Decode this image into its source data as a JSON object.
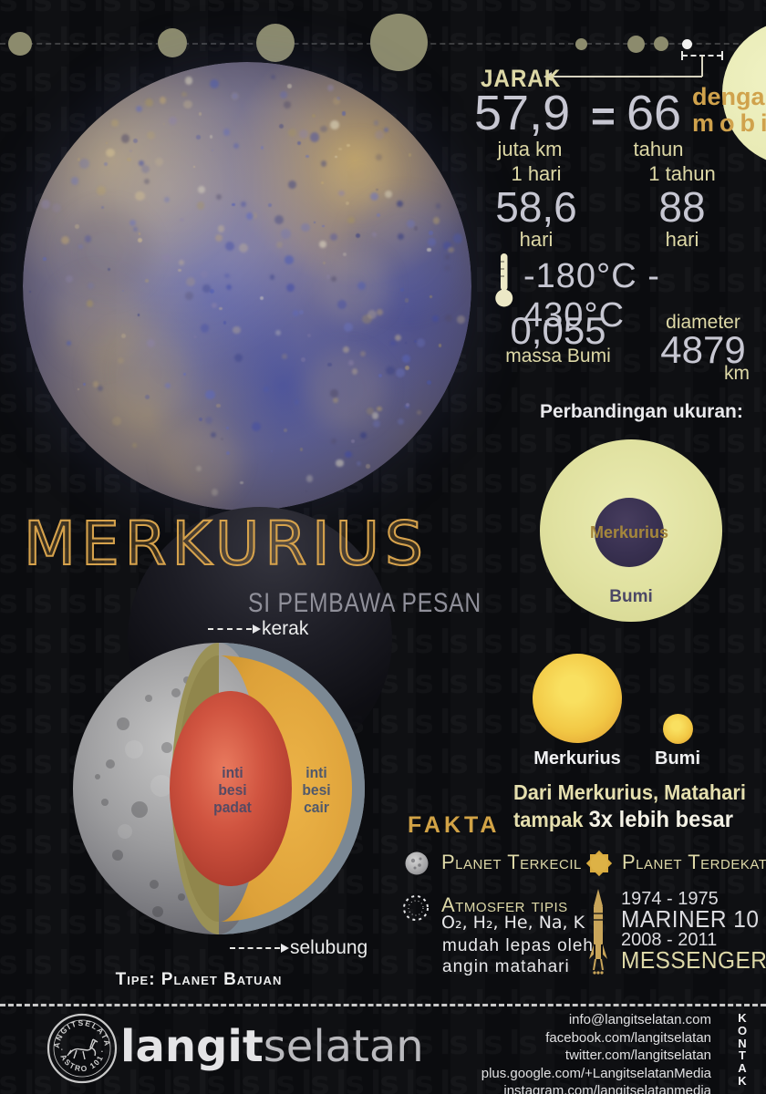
{
  "background": {
    "watermark": "ls"
  },
  "header": {
    "jarak_label": "JARAK",
    "distance_value": "57,9",
    "distance_unit": "juta km",
    "equals": "=",
    "car_value": "66",
    "car_unit": "tahun",
    "car_word1": "dengan",
    "car_word2": "mobil"
  },
  "stats": {
    "day": {
      "top": "1 hari",
      "value": "58,6",
      "bottom": "hari"
    },
    "year": {
      "top": "1 tahun",
      "value": "88",
      "bottom": "hari"
    },
    "temperature": "-180°C - 430°C",
    "mass_value": "0,055",
    "mass_label": "massa Bumi",
    "diameter_label": "diameter",
    "diameter_value": "4879",
    "diameter_unit": "km"
  },
  "size_comparison": {
    "title": "Perbandingan ukuran:",
    "inner": "Merkurius",
    "outer": "Bumi"
  },
  "title": {
    "main": "MERKURIUS",
    "subtitle": "SI PEMBAWA PESAN"
  },
  "cutaway": {
    "kerak": "kerak",
    "selubung": "selubung",
    "core_solid_1": "inti",
    "core_solid_2": "besi",
    "core_solid_3": "padat",
    "core_liquid_1": "inti",
    "core_liquid_2": "besi",
    "core_liquid_3": "cair",
    "type": "Tipe: Planet Batuan"
  },
  "sun_view": {
    "left_label": "Merkurius",
    "right_label": "Bumi",
    "note1": "Dari Merkurius, Matahari",
    "note2a": "tampak",
    "note2b": "3x lebih besar"
  },
  "fakta": {
    "heading": "FAKTA",
    "fact1": "Planet Terkecil",
    "fact2_title": "Atmosfer tipis",
    "fact2_elements": "O₂, H₂, He, Na, K",
    "fact2_note1": "mudah lepas oleh",
    "fact2_note2": "angin matahari",
    "fact3": "Planet Terdekat",
    "mission1_years": "1974 - 1975",
    "mission1_name": "MARINER 10",
    "mission2_years": "2008 - 2011",
    "mission2_name": "MESSENGER"
  },
  "footer": {
    "brand_bold": "langit",
    "brand_light": "selatan",
    "stamp_top": "LANGITSELATAN",
    "stamp_bottom": "· ASTRO 101 ·",
    "contacts": [
      "info@langitselatan.com",
      "facebook.com/langitselatan",
      "twitter.com/langitselatan",
      "plus.google.com/+LangitselatanMedia",
      "instagram.com/langitselatanmedia"
    ],
    "kontak": "KONTAK"
  },
  "colors": {
    "accent_gold": "#d0a24c",
    "pale_yellow": "#ddd8a6",
    "light_gray": "#c7c7d2",
    "earth_circle": "#e0e1a0",
    "mercury_circle": "#383050",
    "sun_yellow": "#f2c845",
    "core_red": "#b5372b",
    "mantle_gold": "#e2a83c",
    "crust_gray": "#7b8894"
  }
}
